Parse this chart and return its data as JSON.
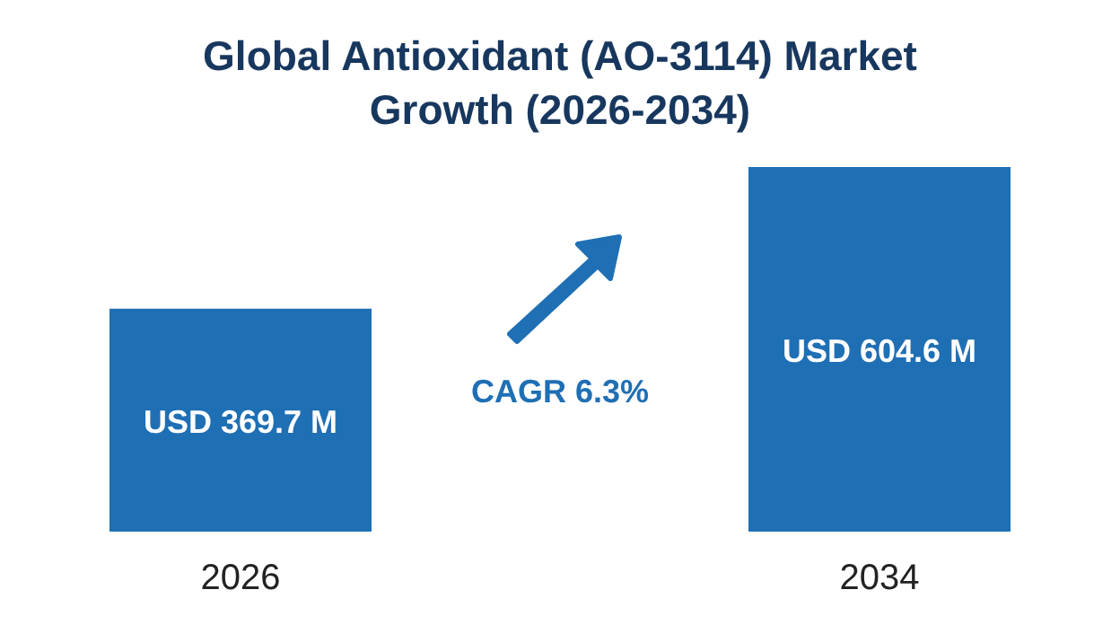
{
  "chart_data": {
    "type": "bar",
    "title": "Global Antioxidant (AO-3114) Market Growth (2026-2034)",
    "categories": [
      "2026",
      "2034"
    ],
    "values": [
      369.7,
      604.6
    ],
    "value_labels": [
      "USD 369.7 M",
      "USD 604.6 M"
    ],
    "color": "#1f6fb5",
    "annotations": [
      "CAGR 6.3%"
    ]
  }
}
